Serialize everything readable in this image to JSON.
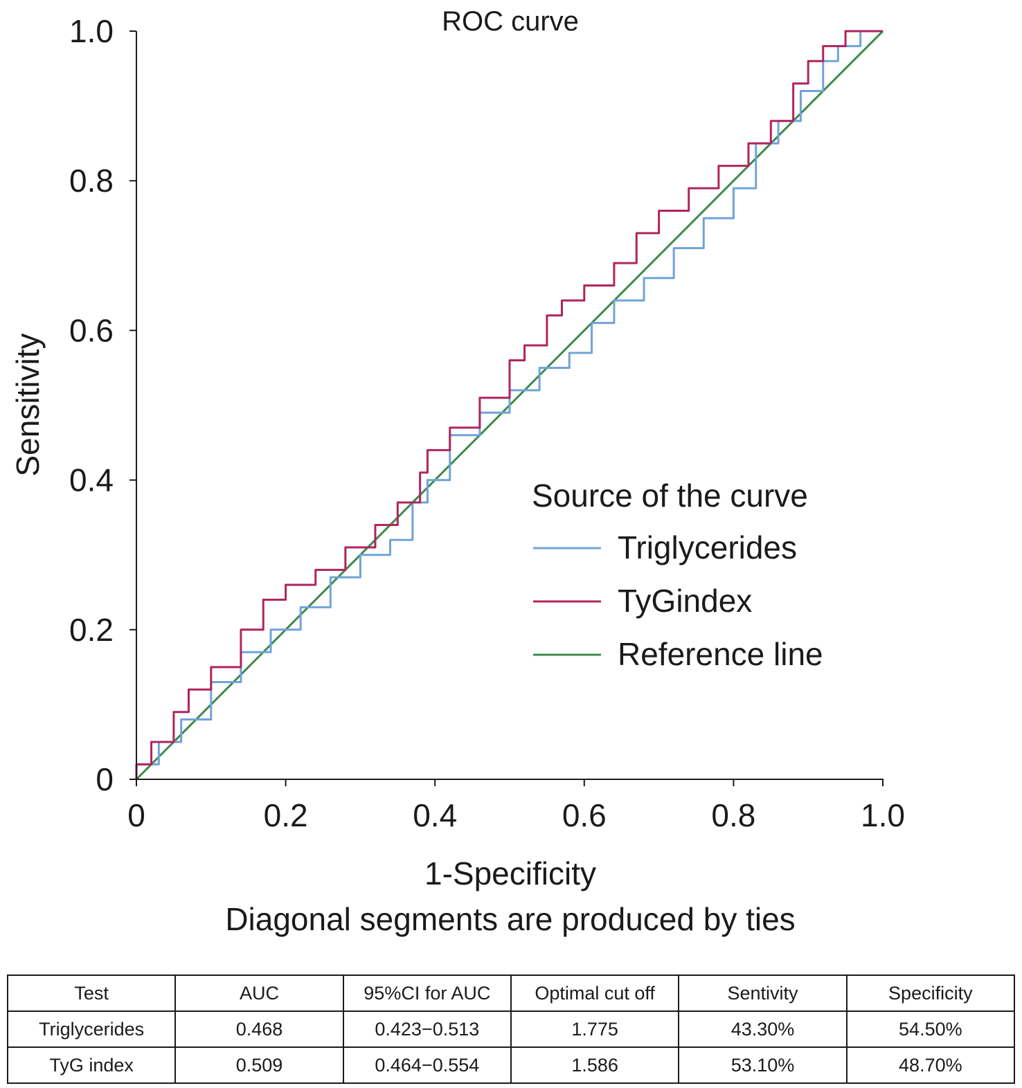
{
  "chart_data": {
    "type": "line",
    "title": "ROC curve",
    "xlabel": "1-Specificity",
    "ylabel": "Sensitivity",
    "note": "Diagonal segments are produced by ties",
    "xlim": [
      0,
      1.0
    ],
    "ylim": [
      0,
      1.0
    ],
    "xticks": [
      "0",
      "0.2",
      "0.4",
      "0.6",
      "0.8",
      "1.0"
    ],
    "yticks": [
      "0",
      "0.2",
      "0.4",
      "0.6",
      "0.8",
      "1.0"
    ],
    "grid": false,
    "legend_title": "Source of the curve",
    "legend_position": "center-right",
    "series": [
      {
        "name": "Triglycerides",
        "color": "#6fa3d8",
        "x": [
          0,
          0.03,
          0.06,
          0.1,
          0.14,
          0.18,
          0.22,
          0.26,
          0.3,
          0.34,
          0.37,
          0.39,
          0.42,
          0.46,
          0.5,
          0.54,
          0.58,
          0.61,
          0.64,
          0.68,
          0.72,
          0.76,
          0.8,
          0.83,
          0.86,
          0.89,
          0.92,
          0.94,
          0.97,
          1.0
        ],
        "y": [
          0,
          0.02,
          0.05,
          0.08,
          0.13,
          0.17,
          0.2,
          0.23,
          0.27,
          0.3,
          0.32,
          0.37,
          0.4,
          0.46,
          0.49,
          0.52,
          0.55,
          0.57,
          0.61,
          0.64,
          0.67,
          0.71,
          0.75,
          0.79,
          0.85,
          0.88,
          0.92,
          0.96,
          0.98,
          1.0
        ]
      },
      {
        "name": "TyGindex",
        "color": "#b0245c",
        "x": [
          0,
          0.02,
          0.05,
          0.07,
          0.1,
          0.14,
          0.17,
          0.2,
          0.24,
          0.28,
          0.32,
          0.35,
          0.38,
          0.39,
          0.42,
          0.46,
          0.5,
          0.52,
          0.55,
          0.57,
          0.6,
          0.64,
          0.67,
          0.7,
          0.74,
          0.78,
          0.82,
          0.85,
          0.88,
          0.9,
          0.92,
          0.95,
          0.98,
          1.0
        ],
        "y": [
          0,
          0.02,
          0.05,
          0.09,
          0.12,
          0.15,
          0.2,
          0.24,
          0.26,
          0.28,
          0.31,
          0.34,
          0.37,
          0.41,
          0.44,
          0.47,
          0.51,
          0.56,
          0.58,
          0.62,
          0.64,
          0.66,
          0.69,
          0.73,
          0.76,
          0.79,
          0.82,
          0.85,
          0.88,
          0.93,
          0.96,
          0.98,
          1.0,
          1.0
        ]
      },
      {
        "name": "Reference line",
        "color": "#3b8a4a",
        "x": [
          0,
          1.0
        ],
        "y": [
          0,
          1.0
        ]
      }
    ]
  },
  "table": {
    "headers": [
      "Test",
      "AUC",
      "95%CI for AUC",
      "Optimal cut off",
      "Sentivity",
      "Specificity"
    ],
    "rows": [
      [
        "Triglycerides",
        "0.468",
        "0.423−0.513",
        "1.775",
        "43.30%",
        "54.50%"
      ],
      [
        "TyG index",
        "0.509",
        "0.464−0.554",
        "1.586",
        "53.10%",
        "48.70%"
      ]
    ]
  }
}
